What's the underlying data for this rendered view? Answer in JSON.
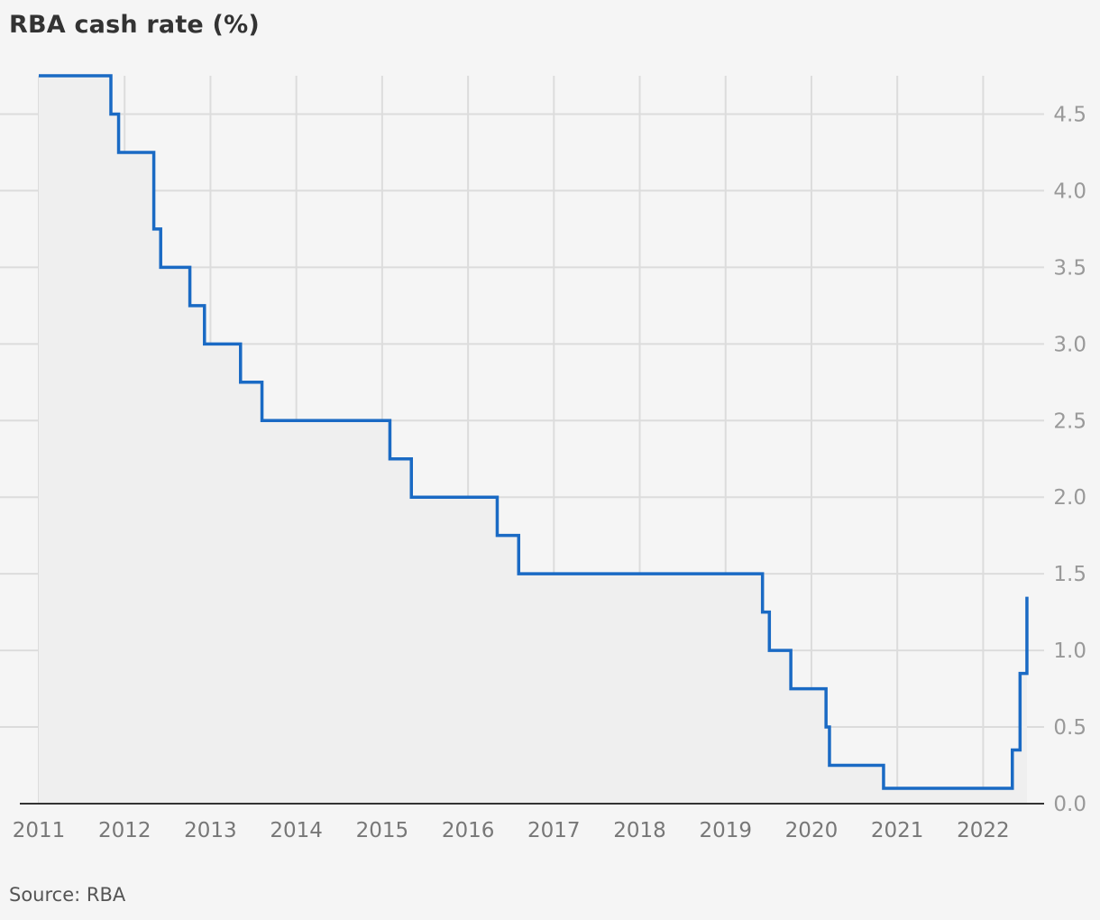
{
  "chart_data": {
    "type": "line",
    "title": "RBA cash rate (%)",
    "source": "Source: RBA",
    "xlabel": "",
    "ylabel": "",
    "xlim": [
      2011.0,
      2022.75
    ],
    "ylim": [
      0,
      4.75
    ],
    "x_ticks": [
      2011,
      2012,
      2013,
      2014,
      2015,
      2016,
      2017,
      2018,
      2019,
      2020,
      2021,
      2022
    ],
    "y_ticks": [
      0.0,
      0.5,
      1.0,
      1.5,
      2.0,
      2.5,
      3.0,
      3.5,
      4.0,
      4.5
    ],
    "y_tick_labels": [
      "0.0",
      "0.5",
      "1.0",
      "1.5",
      "2.0",
      "2.5",
      "3.0",
      "3.5",
      "4.0",
      "4.5"
    ],
    "y_axis_position": "right",
    "grid": true,
    "fill_area": true,
    "step": true,
    "series": [
      {
        "color": "#1a6ac4",
        "points": [
          [
            2011.0,
            4.75
          ],
          [
            2011.84,
            4.5
          ],
          [
            2011.93,
            4.25
          ],
          [
            2012.34,
            3.75
          ],
          [
            2012.42,
            3.5
          ],
          [
            2012.76,
            3.25
          ],
          [
            2012.93,
            3.0
          ],
          [
            2013.35,
            2.75
          ],
          [
            2013.6,
            2.5
          ],
          [
            2015.09,
            2.25
          ],
          [
            2015.34,
            2.0
          ],
          [
            2016.34,
            1.75
          ],
          [
            2016.59,
            1.5
          ],
          [
            2019.43,
            1.25
          ],
          [
            2019.51,
            1.0
          ],
          [
            2019.76,
            0.75
          ],
          [
            2020.17,
            0.5
          ],
          [
            2020.21,
            0.25
          ],
          [
            2020.84,
            0.1
          ],
          [
            2022.34,
            0.35
          ],
          [
            2022.43,
            0.85
          ],
          [
            2022.51,
            1.35
          ]
        ],
        "end_x": 2022.51
      }
    ],
    "colors": {
      "line": "#1a6ac4",
      "fill": "#efefef",
      "grid": "#dcdcdc",
      "axis": "#333333",
      "background": "#f5f5f5"
    }
  }
}
